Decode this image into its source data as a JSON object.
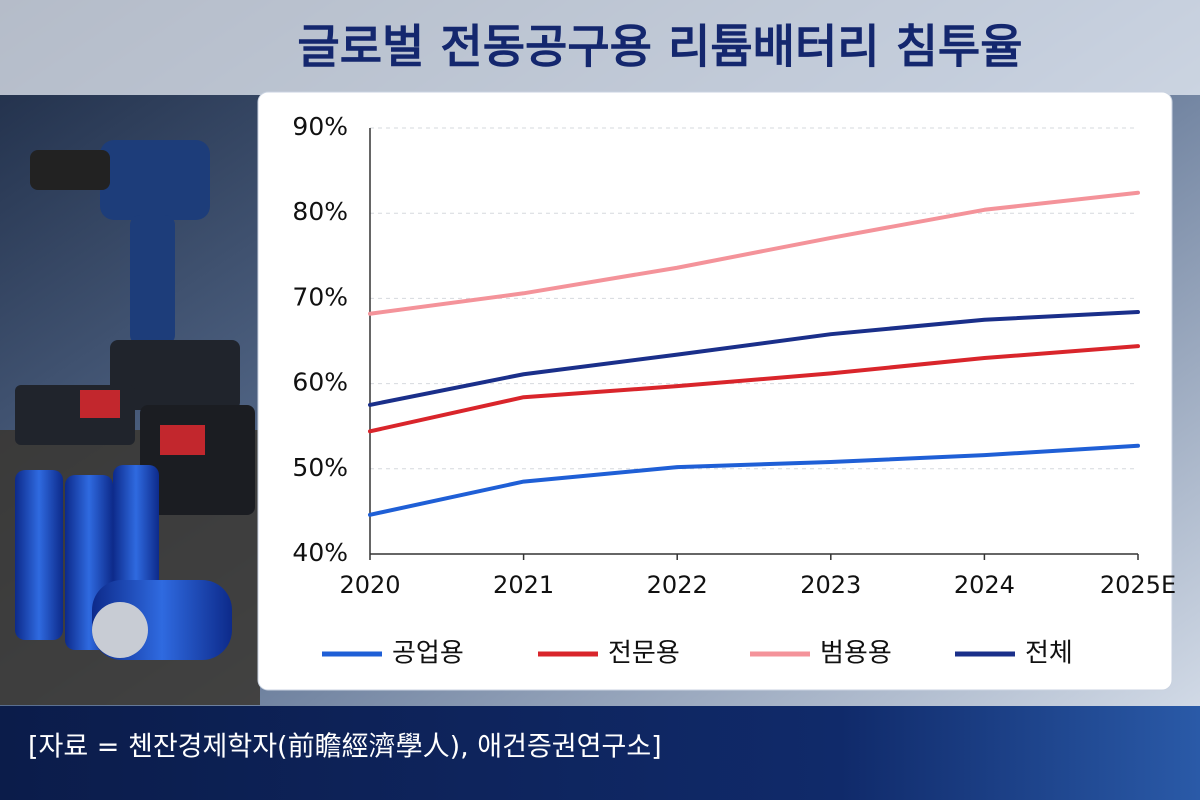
{
  "chart_data": {
    "type": "line",
    "title": "글로벌 전동공구용 리튬배터리 침투율",
    "source": "[자료 = 첸잔경제학자(前瞻經濟學人), 애건증권연구소]",
    "categories": [
      "2020",
      "2021",
      "2022",
      "2023",
      "2024",
      "2025E"
    ],
    "series": [
      {
        "name": "공업용",
        "color": "#1f5fd6",
        "values": [
          44.6,
          48.5,
          50.2,
          50.8,
          51.6,
          52.7
        ]
      },
      {
        "name": "전문용",
        "color": "#d9252b",
        "values": [
          54.4,
          58.4,
          59.7,
          61.2,
          63.0,
          64.4
        ]
      },
      {
        "name": "범용용",
        "color": "#f4939a",
        "values": [
          68.2,
          70.6,
          73.6,
          77.1,
          80.4,
          82.4
        ]
      },
      {
        "name": "전체",
        "color": "#1a2f8a",
        "values": [
          57.5,
          61.1,
          63.4,
          65.8,
          67.5,
          68.4
        ]
      }
    ],
    "ylim": [
      40,
      90
    ],
    "yticks": [
      {
        "value": 40,
        "label": "40%"
      },
      {
        "value": 50,
        "label": "50%"
      },
      {
        "value": 60,
        "label": "60%"
      },
      {
        "value": 70,
        "label": "70%"
      },
      {
        "value": 80,
        "label": "80%"
      },
      {
        "value": 90,
        "label": "90%"
      }
    ],
    "grid": true,
    "legend": "bottom"
  }
}
